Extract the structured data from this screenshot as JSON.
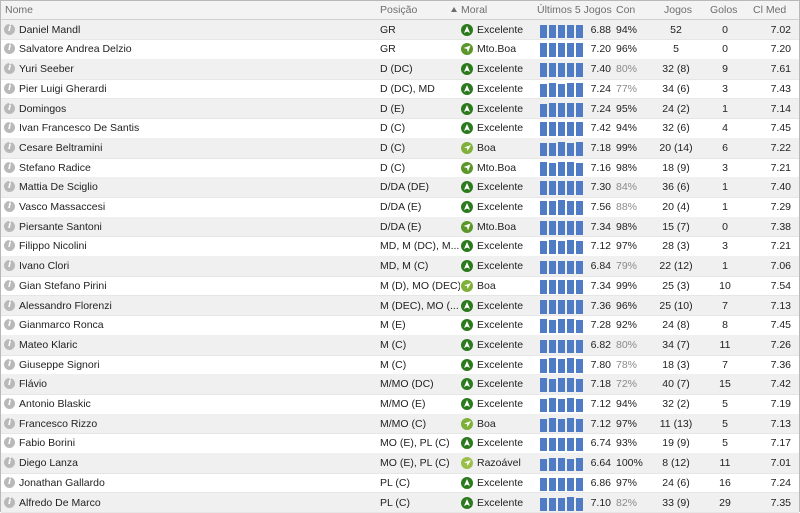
{
  "headers": {
    "name": "Nome",
    "position": "Posição",
    "morale": "Moral",
    "last5": "Últimos 5 Jogos",
    "con": "Con",
    "apps": "Jogos",
    "goals": "Golos",
    "avg": "Cl Med"
  },
  "colors": {
    "morale_excellent": "#2c7a1e",
    "morale_very_good": "#5a9628",
    "morale_good": "#7eb03a",
    "morale_reasonable": "#9cbf4a",
    "bar": "#4f7cc4"
  },
  "players": [
    {
      "name": "Daniel Mandl",
      "position": "GR",
      "morale": "Excelente",
      "morale_icon": "arrow-up-icon",
      "form": [
        0.8,
        0.8,
        0.8,
        0.8,
        0.8
      ],
      "avg": "6.88",
      "con": "94%",
      "apps": "52",
      "goals": "0",
      "cimed": "7.02"
    },
    {
      "name": "Salvatore Andrea Delzio",
      "position": "GR",
      "morale": "Mto.Boa",
      "morale_icon": "arrow-up-right-icon",
      "form": [
        0.85,
        0.85,
        0.85,
        0.85,
        0.85
      ],
      "avg": "7.20",
      "con": "96%",
      "apps": "5",
      "goals": "0",
      "cimed": "7.20"
    },
    {
      "name": "Yuri Seeber",
      "position": "D (DC)",
      "morale": "Excelente",
      "morale_icon": "arrow-up-icon",
      "form": [
        0.9,
        0.9,
        0.9,
        0.9,
        0.9
      ],
      "avg": "7.40",
      "con": "80%",
      "apps": "32 (8)",
      "goals": "9",
      "cimed": "7.61"
    },
    {
      "name": "Pier Luigi Gherardi",
      "position": "D (DC), MD",
      "morale": "Excelente",
      "morale_icon": "arrow-up-icon",
      "form": [
        0.8,
        0.85,
        0.8,
        0.85,
        0.85
      ],
      "avg": "7.24",
      "con": "77%",
      "apps": "34 (6)",
      "goals": "3",
      "cimed": "7.43"
    },
    {
      "name": "Domingos",
      "position": "D (E)",
      "morale": "Excelente",
      "morale_icon": "arrow-up-icon",
      "form": [
        0.8,
        0.85,
        0.85,
        0.85,
        0.85
      ],
      "avg": "7.24",
      "con": "95%",
      "apps": "24 (2)",
      "goals": "1",
      "cimed": "7.14"
    },
    {
      "name": "Ivan Francesco De Santis",
      "position": "D (C)",
      "morale": "Excelente",
      "morale_icon": "arrow-up-icon",
      "form": [
        0.85,
        0.9,
        0.9,
        0.9,
        0.9
      ],
      "avg": "7.42",
      "con": "94%",
      "apps": "32 (6)",
      "goals": "4",
      "cimed": "7.45"
    },
    {
      "name": "Cesare Beltramini",
      "position": "D (C)",
      "morale": "Boa",
      "morale_icon": "arrow-right-icon",
      "form": [
        0.8,
        0.8,
        0.85,
        0.8,
        0.85
      ],
      "avg": "7.18",
      "con": "99%",
      "apps": "20 (14)",
      "goals": "6",
      "cimed": "7.22"
    },
    {
      "name": "Stefano Radice",
      "position": "D (C)",
      "morale": "Mto.Boa",
      "morale_icon": "arrow-up-right-icon",
      "form": [
        0.85,
        0.8,
        0.85,
        0.85,
        0.8
      ],
      "avg": "7.16",
      "con": "98%",
      "apps": "18 (9)",
      "goals": "3",
      "cimed": "7.21"
    },
    {
      "name": "Mattia De Sciglio",
      "position": "D/DA (DE)",
      "morale": "Excelente",
      "morale_icon": "arrow-up-icon",
      "form": [
        0.85,
        0.85,
        0.85,
        0.85,
        0.85
      ],
      "avg": "7.30",
      "con": "84%",
      "apps": "36 (6)",
      "goals": "1",
      "cimed": "7.40"
    },
    {
      "name": "Vasco Massaccesi",
      "position": "D/DA (E)",
      "morale": "Excelente",
      "morale_icon": "arrow-up-icon",
      "form": [
        0.9,
        0.9,
        0.95,
        0.9,
        0.9
      ],
      "avg": "7.56",
      "con": "88%",
      "apps": "20 (4)",
      "goals": "1",
      "cimed": "7.29"
    },
    {
      "name": "Piersante Santoni",
      "position": "D/DA (E)",
      "morale": "Mto.Boa",
      "morale_icon": "arrow-up-right-icon",
      "form": [
        0.85,
        0.85,
        0.9,
        0.85,
        0.85
      ],
      "avg": "7.34",
      "con": "98%",
      "apps": "15 (7)",
      "goals": "0",
      "cimed": "7.38"
    },
    {
      "name": "Filippo Nicolini",
      "position": "MD, M (DC), M...",
      "morale": "Excelente",
      "morale_icon": "arrow-up-icon",
      "form": [
        0.8,
        0.85,
        0.8,
        0.85,
        0.8
      ],
      "avg": "7.12",
      "con": "97%",
      "apps": "28 (3)",
      "goals": "3",
      "cimed": "7.21"
    },
    {
      "name": "Ivano Clori",
      "position": "MD, M (C)",
      "morale": "Excelente",
      "morale_icon": "arrow-up-icon",
      "form": [
        0.8,
        0.8,
        0.8,
        0.8,
        0.8
      ],
      "avg": "6.84",
      "con": "79%",
      "apps": "22 (12)",
      "goals": "1",
      "cimed": "7.06"
    },
    {
      "name": "Gian Stefano Pirini",
      "position": "M (D), MO (DEC)",
      "morale": "Boa",
      "morale_icon": "arrow-right-icon",
      "form": [
        0.85,
        0.85,
        0.85,
        0.85,
        0.85
      ],
      "avg": "7.34",
      "con": "99%",
      "apps": "25 (3)",
      "goals": "10",
      "cimed": "7.54"
    },
    {
      "name": "Alessandro Florenzi",
      "position": "M (DEC), MO (...",
      "morale": "Excelente",
      "morale_icon": "arrow-up-icon",
      "form": [
        0.85,
        0.85,
        0.85,
        0.85,
        0.85
      ],
      "avg": "7.36",
      "con": "96%",
      "apps": "25 (10)",
      "goals": "7",
      "cimed": "7.13"
    },
    {
      "name": "Gianmarco Ronca",
      "position": "M (E)",
      "morale": "Excelente",
      "morale_icon": "arrow-up-icon",
      "form": [
        0.85,
        0.8,
        0.85,
        0.85,
        0.8
      ],
      "avg": "7.28",
      "con": "92%",
      "apps": "24 (8)",
      "goals": "8",
      "cimed": "7.45"
    },
    {
      "name": "Mateo Klaric",
      "position": "M (C)",
      "morale": "Excelente",
      "morale_icon": "arrow-up-icon",
      "form": [
        0.8,
        0.8,
        0.8,
        0.8,
        0.8
      ],
      "avg": "6.82",
      "con": "80%",
      "apps": "34 (7)",
      "goals": "11",
      "cimed": "7.26"
    },
    {
      "name": "Giuseppe Signori",
      "position": "M (C)",
      "morale": "Excelente",
      "morale_icon": "arrow-up-icon",
      "form": [
        0.9,
        0.95,
        0.9,
        0.95,
        0.9
      ],
      "avg": "7.80",
      "con": "78%",
      "apps": "18 (3)",
      "goals": "7",
      "cimed": "7.36"
    },
    {
      "name": "Flávio",
      "position": "M/MO (DC)",
      "morale": "Excelente",
      "morale_icon": "arrow-up-icon",
      "form": [
        0.85,
        0.8,
        0.85,
        0.85,
        0.8
      ],
      "avg": "7.18",
      "con": "72%",
      "apps": "40 (7)",
      "goals": "15",
      "cimed": "7.42"
    },
    {
      "name": "Antonio Blaskic",
      "position": "M/MO (E)",
      "morale": "Excelente",
      "morale_icon": "arrow-up-icon",
      "form": [
        0.8,
        0.85,
        0.8,
        0.85,
        0.8
      ],
      "avg": "7.12",
      "con": "94%",
      "apps": "32 (2)",
      "goals": "5",
      "cimed": "7.19"
    },
    {
      "name": "Francesco Rizzo",
      "position": "M/MO (C)",
      "morale": "Boa",
      "morale_icon": "arrow-right-icon",
      "form": [
        0.8,
        0.85,
        0.8,
        0.85,
        0.8
      ],
      "avg": "7.12",
      "con": "97%",
      "apps": "11 (13)",
      "goals": "5",
      "cimed": "7.13"
    },
    {
      "name": "Fabio Borini",
      "position": "MO (E), PL (C)",
      "morale": "Excelente",
      "morale_icon": "arrow-up-icon",
      "form": [
        0.8,
        0.8,
        0.8,
        0.8,
        0.8
      ],
      "avg": "6.74",
      "con": "93%",
      "apps": "19 (9)",
      "goals": "5",
      "cimed": "7.17"
    },
    {
      "name": "Diego Lanza",
      "position": "MO (E), PL (C)",
      "morale": "Razoável",
      "morale_icon": "arrow-right-icon",
      "form": [
        0.75,
        0.8,
        0.8,
        0.75,
        0.8
      ],
      "avg": "6.64",
      "con": "100%",
      "apps": "8 (12)",
      "goals": "11",
      "cimed": "7.01"
    },
    {
      "name": "Jonathan Gallardo",
      "position": "PL (C)",
      "morale": "Excelente",
      "morale_icon": "arrow-up-icon",
      "form": [
        0.8,
        0.8,
        0.8,
        0.8,
        0.8
      ],
      "avg": "6.86",
      "con": "97%",
      "apps": "24 (6)",
      "goals": "16",
      "cimed": "7.24"
    },
    {
      "name": "Alfredo De Marco",
      "position": "PL (C)",
      "morale": "Excelente",
      "morale_icon": "arrow-up-icon",
      "form": [
        0.8,
        0.8,
        0.8,
        0.85,
        0.8
      ],
      "avg": "7.10",
      "con": "82%",
      "apps": "33 (9)",
      "goals": "29",
      "cimed": "7.35"
    }
  ]
}
